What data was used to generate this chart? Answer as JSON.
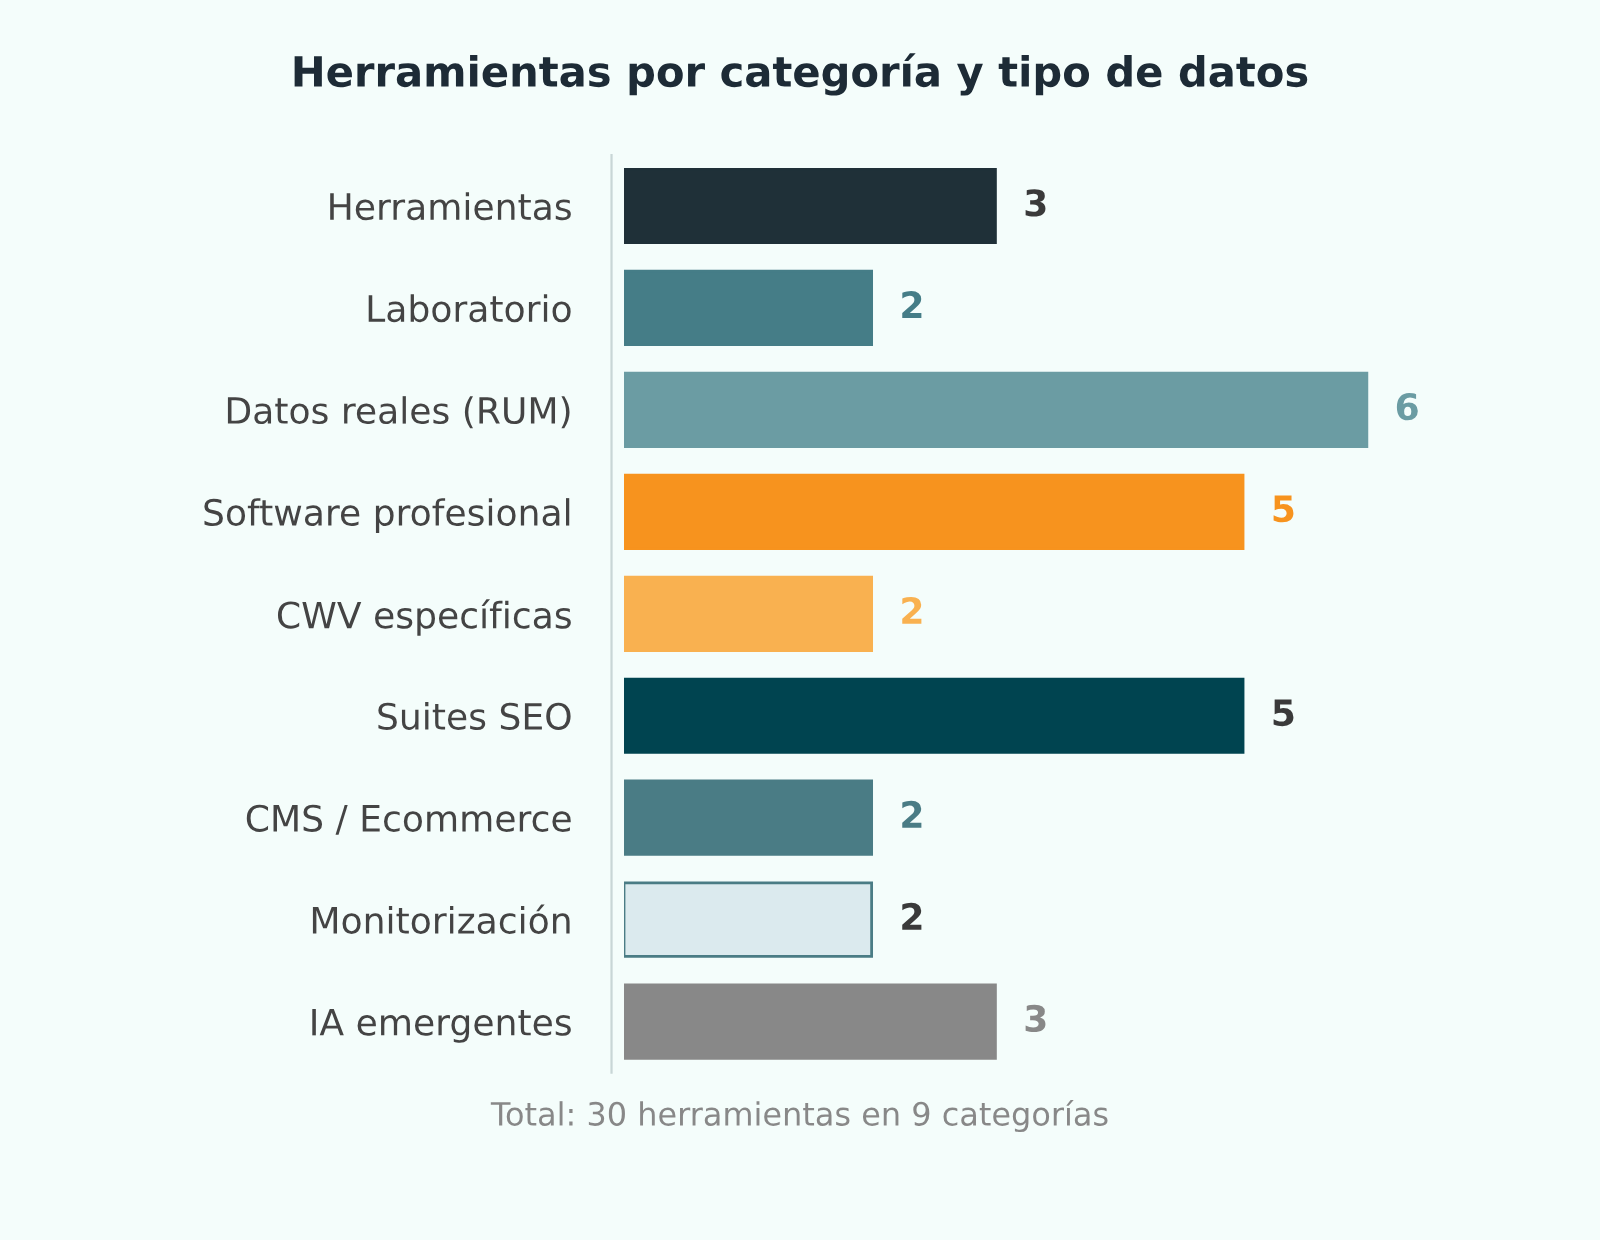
{
  "chart_data": {
    "type": "bar",
    "orientation": "horizontal",
    "title": "Herramientas por categoría y tipo de datos",
    "categories": [
      "Herramientas",
      "Laboratorio",
      "Datos reales (RUM)",
      "Software profesional",
      "CWV específicas",
      "Suites SEO",
      "CMS / Ecommerce",
      "Monitorización",
      "IA emergentes"
    ],
    "values": [
      3,
      2,
      6,
      5,
      2,
      5,
      2,
      2,
      3
    ],
    "colors": [
      "#1f3038",
      "#457d87",
      "#6b9ca3",
      "#f7931e",
      "#f9b150",
      "#004450",
      "#4a7c85",
      "#dbeaee",
      "#888888"
    ],
    "data_labels": true,
    "annotations": [
      "Total: 30 herramientas en 9 categorías"
    ]
  }
}
